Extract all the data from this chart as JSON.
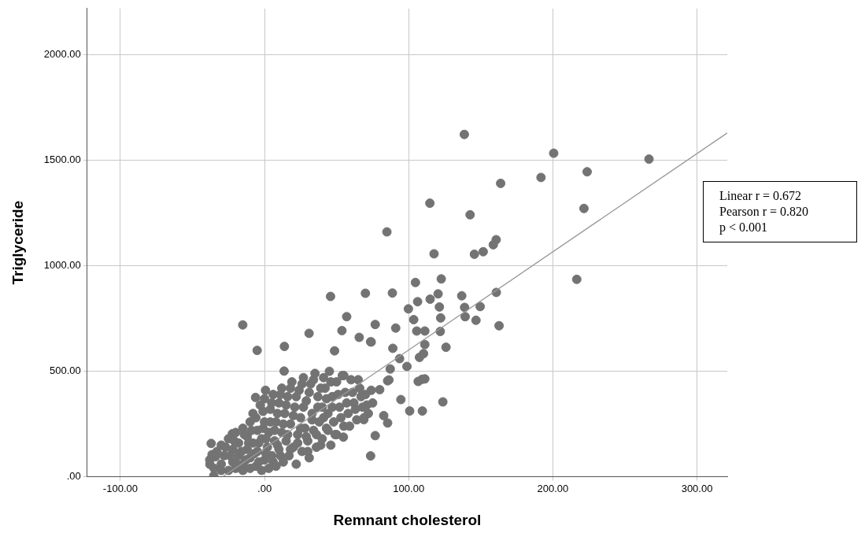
{
  "chart_data": {
    "type": "scatter",
    "xlabel": "Remnant cholesterol",
    "ylabel": "Triglyceride",
    "xlim": [
      -123,
      321
    ],
    "ylim": [
      0,
      2220
    ],
    "xticks": [
      {
        "value": -100,
        "label": "-100.00"
      },
      {
        "value": 0,
        "label": ".00"
      },
      {
        "value": 100,
        "label": "100.00"
      },
      {
        "value": 200,
        "label": "200.00"
      },
      {
        "value": 300,
        "label": "300.00"
      }
    ],
    "yticks": [
      {
        "value": 0,
        "label": ".00"
      },
      {
        "value": 500,
        "label": "500.00"
      },
      {
        "value": 1000,
        "label": "1000.00"
      },
      {
        "value": 1500,
        "label": "1500.00"
      },
      {
        "value": 2000,
        "label": "2000.00"
      }
    ],
    "grid": true,
    "marker": "circle",
    "legend": false,
    "annotations": [
      "Linear r = 0.672",
      "Pearson r = 0.820",
      "p < 0.001"
    ],
    "series": [
      {
        "color": "#737373",
        "x": [
          138.6,
          200.6,
          266.7,
          223.8,
          191.8,
          163.8,
          114.7,
          142.6,
          221.6,
          84.9,
          160.7,
          158.7,
          151.7,
          145.6,
          117.6,
          216.6,
          122.6,
          104.7,
          70,
          88.7,
          120.4,
          136.8,
          160.8,
          99.8,
          121.3,
          138.8,
          149.6,
          122.2,
          103.5,
          139.2,
          146.7,
          162.7,
          57,
          76.8,
          91,
          106.2,
          114.9,
          105.6,
          111.2,
          121.9,
          125.9,
          111.2,
          107.5,
          98.8,
          87.2,
          109.3,
          86.3,
          65.7,
          89,
          93.7,
          74,
          45.8,
          -15.1,
          -5.1,
          13.8,
          30.9,
          53.7,
          48.6,
          73.6,
          13.6,
          0.7,
          -6.2,
          -22.3,
          -37,
          -35.2,
          -37.9,
          -36.4,
          73.6,
          76.8,
          54.7,
          85.4,
          94.6,
          100.7,
          109.5,
          123.7,
          106.6,
          111.2,
          68.9,
          82.7,
          79.9,
          85.4,
          110.3,
          -38,
          -35,
          -33,
          -30,
          -30,
          -28,
          -25,
          -25,
          -22,
          -22,
          -20,
          -20,
          -18,
          -18,
          -15,
          -15,
          -15,
          -12,
          -12,
          -10,
          -10,
          -10,
          -8,
          -8,
          -6,
          -5,
          -5,
          -3,
          -2,
          -2,
          0,
          0,
          0,
          2,
          3,
          3,
          4,
          5,
          6,
          7,
          8,
          8,
          10,
          10,
          12,
          12,
          13,
          14,
          15,
          16,
          17,
          18,
          19,
          20,
          21,
          22,
          23,
          24,
          25,
          26,
          27,
          28,
          29,
          30,
          31,
          32,
          33,
          34,
          35,
          36,
          37,
          38,
          40,
          40,
          41,
          42,
          43,
          44,
          45,
          46,
          47,
          48,
          50,
          50,
          52,
          54,
          55,
          56,
          58,
          60,
          62,
          64,
          66,
          68,
          70,
          72,
          75,
          -34,
          -30,
          -27,
          -24,
          -21,
          -19,
          -16,
          -14,
          -13,
          -11,
          -9,
          -7,
          -6,
          -4,
          -4,
          -1,
          -1,
          1,
          1,
          4,
          5,
          6,
          7,
          9,
          9,
          11,
          11,
          13,
          15,
          16,
          18,
          18,
          20,
          22,
          23,
          25,
          26,
          27,
          29,
          30,
          31,
          33,
          34,
          36,
          37,
          39,
          39,
          41,
          43,
          44,
          46,
          47,
          49,
          51,
          53,
          55,
          57,
          59,
          61,
          63,
          65,
          67,
          69,
          71,
          74
        ],
        "values": [
          1623,
          1534,
          1506,
          1446,
          1419,
          1391,
          1297,
          1242,
          1272,
          1161,
          1124,
          1100,
          1067,
          1055,
          1057,
          936,
          938,
          921,
          870,
          871,
          867,
          858,
          874,
          796,
          805,
          803,
          807,
          753,
          745,
          759,
          742,
          716,
          759,
          722,
          705,
          830,
          842,
          691,
          691,
          689,
          614,
          627,
          566,
          523,
          511,
          462,
          459,
          661,
          609,
          560,
          639,
          855,
          720,
          599,
          618,
          680,
          693,
          597,
          640,
          501,
          410,
          376,
          204,
          158,
          5,
          59,
          105,
          99,
          195,
          188,
          255,
          366,
          312,
          312,
          355,
          452,
          464,
          271,
          290,
          413,
          455,
          584,
          80,
          40,
          120,
          60,
          150,
          100,
          30,
          180,
          70,
          130,
          40,
          210,
          100,
          160,
          30,
          60,
          230,
          130,
          190,
          40,
          90,
          260,
          160,
          300,
          50,
          120,
          220,
          340,
          30,
          180,
          80,
          260,
          370,
          140,
          40,
          210,
          320,
          100,
          390,
          170,
          260,
          50,
          350,
          130,
          210,
          420,
          70,
          300,
          170,
          380,
          100,
          250,
          450,
          140,
          330,
          60,
          200,
          410,
          280,
          120,
          470,
          230,
          360,
          170,
          90,
          440,
          300,
          220,
          490,
          140,
          380,
          260,
          330,
          180,
          470,
          420,
          230,
          300,
          500,
          150,
          380,
          260,
          450,
          200,
          330,
          480,
          240,
          400,
          300,
          460,
          350,
          270,
          420,
          330,
          390,
          300,
          350,
          95,
          30,
          140,
          100,
          170,
          60,
          120,
          200,
          80,
          160,
          220,
          110,
          280,
          70,
          160,
          230,
          310,
          110,
          180,
          260,
          350,
          70,
          220,
          300,
          150,
          100,
          390,
          250,
          340,
          200,
          130,
          420,
          290,
          380,
          160,
          230,
          440,
          330,
          190,
          120,
          400,
          270,
          460,
          200,
          330,
          150,
          420,
          280,
          370,
          220,
          450,
          330,
          200,
          390,
          280,
          480,
          350,
          240,
          400,
          320,
          460,
          380,
          280,
          340,
          410
        ]
      },
      {
        "type": "line",
        "color": "#999999",
        "marker": "none",
        "x": [
          -29,
          321
        ],
        "values": [
          0,
          1630
        ]
      }
    ]
  }
}
